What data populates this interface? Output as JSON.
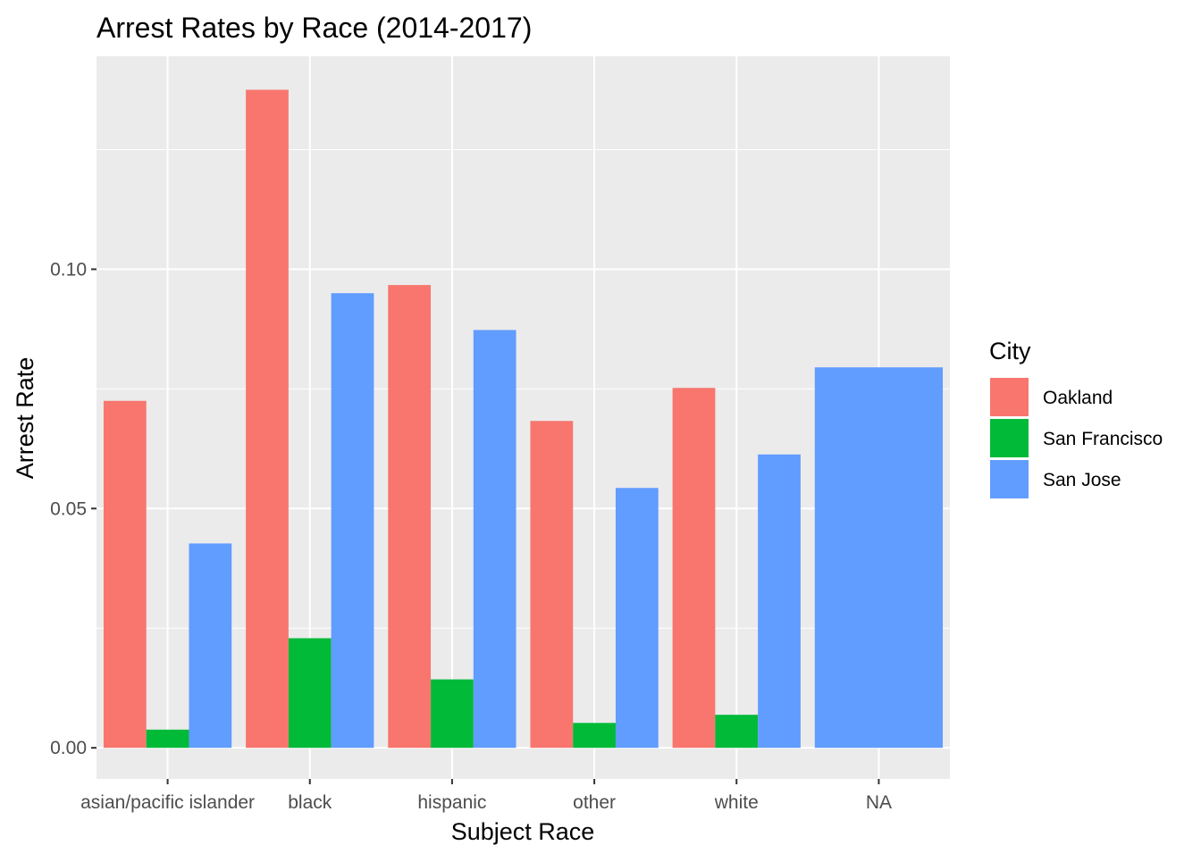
{
  "chart_data": {
    "type": "bar",
    "title": "Arrest Rates by Race (2014-2017)",
    "xlabel": "Subject Race",
    "ylabel": "Arrest Rate",
    "categories": [
      "asian/pacific islander",
      "black",
      "hispanic",
      "other",
      "white",
      "NA"
    ],
    "series": [
      {
        "name": "Oakland",
        "color": "#F8766D",
        "values": [
          0.0725,
          0.1375,
          0.0967,
          0.0683,
          0.0752,
          null
        ]
      },
      {
        "name": "San Francisco",
        "color": "#00BA38",
        "values": [
          0.0038,
          0.0229,
          0.0143,
          0.0052,
          0.0069,
          null
        ]
      },
      {
        "name": "San Jose",
        "color": "#619CFF",
        "values": [
          0.0427,
          0.095,
          0.0873,
          0.0543,
          0.0613,
          0.0795
        ]
      }
    ],
    "ylim": [
      -0.0065,
      0.1445
    ],
    "yticks": [
      0.0,
      0.05,
      0.1
    ],
    "ytick_labels": [
      "0.00",
      "0.05",
      "0.10"
    ],
    "grid": true,
    "legend": {
      "title": "City",
      "position": "right"
    },
    "panel_background": "#EBEBEB",
    "grid_color": "#FFFFFF"
  }
}
